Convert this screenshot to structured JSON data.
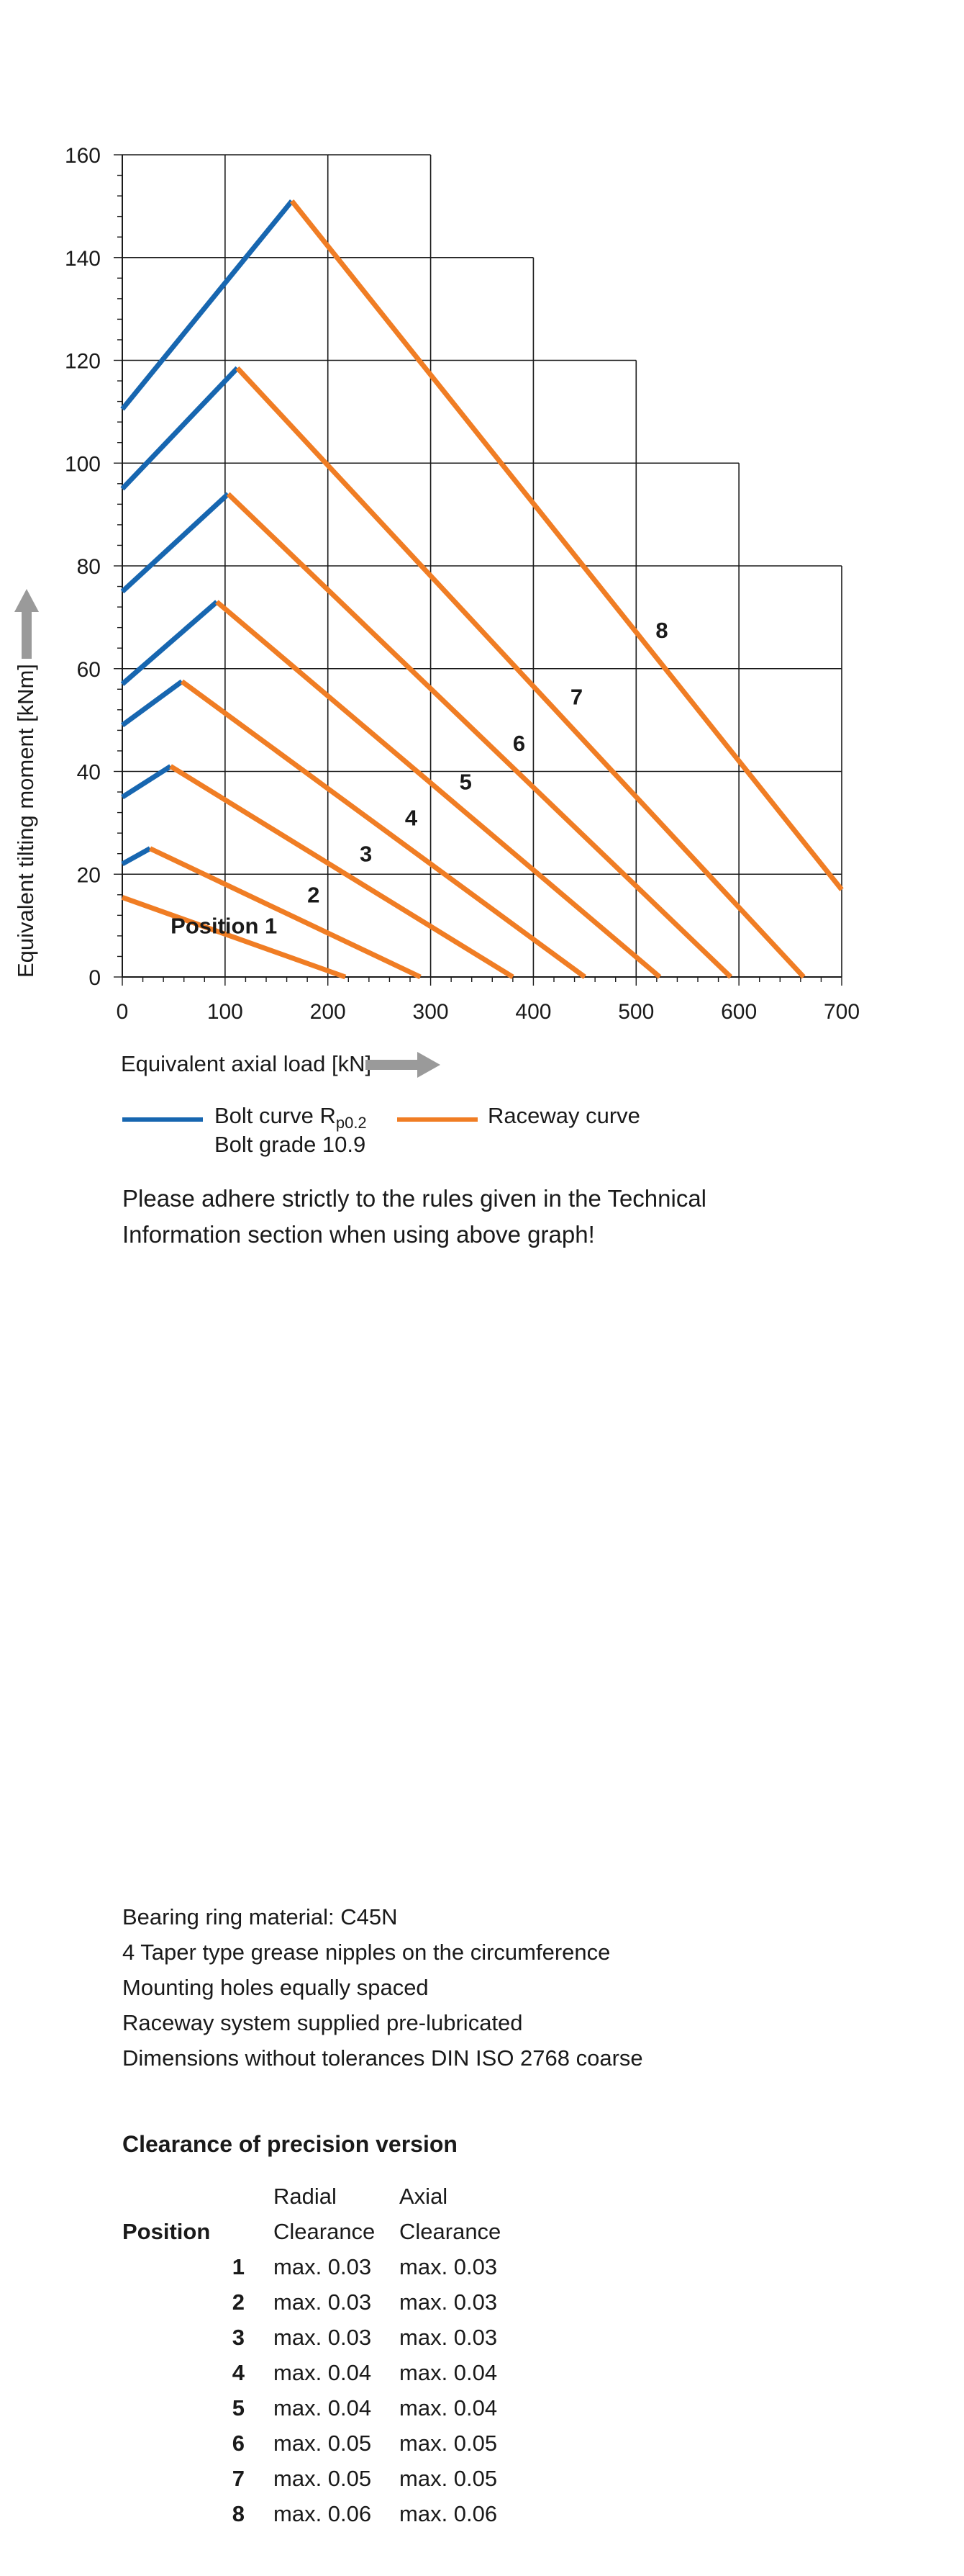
{
  "chart_data": {
    "type": "line",
    "xlabel": "Equivalent axial load [kN]",
    "ylabel": "Equivalent tilting moment [kNm]",
    "xlim": [
      0,
      700
    ],
    "ylim": [
      0,
      160
    ],
    "x_ticks": [
      "0",
      "100",
      "200",
      "300",
      "400",
      "500",
      "600",
      "700"
    ],
    "y_ticks": [
      "0",
      "20",
      "40",
      "60",
      "80",
      "100",
      "120",
      "140",
      "160"
    ],
    "grid": true,
    "legend_position": "bottom",
    "series": [
      {
        "name": "Bolt curve",
        "color": "#1766b0",
        "curves": [
          {
            "label": "Position 1",
            "points": []
          },
          {
            "label": "2",
            "points": [
              [
                0,
                22
              ],
              [
                27,
                25
              ]
            ]
          },
          {
            "label": "3",
            "points": [
              [
                0,
                35
              ],
              [
                47,
                41
              ]
            ]
          },
          {
            "label": "4",
            "points": [
              [
                0,
                49
              ],
              [
                58,
                57.5
              ]
            ]
          },
          {
            "label": "5",
            "points": [
              [
                0,
                57
              ],
              [
                92,
                73
              ]
            ]
          },
          {
            "label": "6",
            "points": [
              [
                0,
                75
              ],
              [
                103,
                94
              ]
            ]
          },
          {
            "label": "7",
            "points": [
              [
                0,
                95
              ],
              [
                112,
                118.5
              ]
            ]
          },
          {
            "label": "8",
            "points": [
              [
                0,
                110.5
              ],
              [
                165,
                151
              ]
            ]
          }
        ]
      },
      {
        "name": "Raceway curve",
        "color": "#f07d24",
        "curves": [
          {
            "label": "Position 1",
            "points": [
              [
                0,
                15.5
              ],
              [
                217,
                0
              ]
            ]
          },
          {
            "label": "2",
            "points": [
              [
                27,
                25
              ],
              [
                290,
                0
              ]
            ]
          },
          {
            "label": "3",
            "points": [
              [
                47,
                41
              ],
              [
                380,
                0
              ]
            ]
          },
          {
            "label": "4",
            "points": [
              [
                58,
                57.5
              ],
              [
                450,
                0
              ]
            ]
          },
          {
            "label": "5",
            "points": [
              [
                92,
                73
              ],
              [
                523,
                0
              ]
            ]
          },
          {
            "label": "6",
            "points": [
              [
                103,
                94
              ],
              [
                592,
                0
              ]
            ]
          },
          {
            "label": "7",
            "points": [
              [
                112,
                118.5
              ],
              [
                663,
                0
              ]
            ]
          },
          {
            "label": "8",
            "points": [
              [
                165,
                151
              ],
              [
                700,
                17
              ]
            ]
          }
        ]
      }
    ],
    "curve_labels": [
      {
        "text": "Position  1",
        "x": 47,
        "y": 8.5
      },
      {
        "text": "2",
        "x": 180,
        "y": 14.5
      },
      {
        "text": "3",
        "x": 231,
        "y": 22.5
      },
      {
        "text": "4",
        "x": 275,
        "y": 29.5
      },
      {
        "text": "5",
        "x": 328,
        "y": 36.5
      },
      {
        "text": "6",
        "x": 380,
        "y": 44
      },
      {
        "text": "7",
        "x": 436,
        "y": 53
      },
      {
        "text": "8",
        "x": 519,
        "y": 66
      }
    ]
  },
  "legend": {
    "bolt_label": "Bolt curve  R",
    "bolt_sub": "p0.2",
    "bolt_grade": "Bolt grade 10.9",
    "raceway_label": "Raceway curve"
  },
  "note": {
    "line1": "Please adhere strictly to the rules given in the Technical",
    "line2": "Information section when using above graph!"
  },
  "specs": [
    "Bearing ring material: C45N",
    "4 Taper type grease nipples on the circumference",
    "Mounting holes equally spaced",
    "Raceway system supplied pre-lubricated",
    "Dimensions without tolerances DIN ISO 2768 coarse"
  ],
  "clearance": {
    "title": "Clearance of precision version",
    "head_top": [
      "",
      "Radial",
      "Axial"
    ],
    "head_bottom": [
      "Position",
      "Clearance",
      "Clearance"
    ],
    "rows": [
      [
        "1",
        "max. 0.03",
        "max. 0.03"
      ],
      [
        "2",
        "max. 0.03",
        "max. 0.03"
      ],
      [
        "3",
        "max. 0.03",
        "max. 0.03"
      ],
      [
        "4",
        "max. 0.04",
        "max. 0.04"
      ],
      [
        "5",
        "max. 0.04",
        "max. 0.04"
      ],
      [
        "6",
        "max. 0.05",
        "max. 0.05"
      ],
      [
        "7",
        "max. 0.05",
        "max. 0.05"
      ],
      [
        "8",
        "max. 0.06",
        "max. 0.06"
      ]
    ]
  },
  "colors": {
    "bolt": "#1766b0",
    "raceway": "#f07d24",
    "arrow": "#9a9a9a",
    "grid": "#1a1a1a"
  }
}
